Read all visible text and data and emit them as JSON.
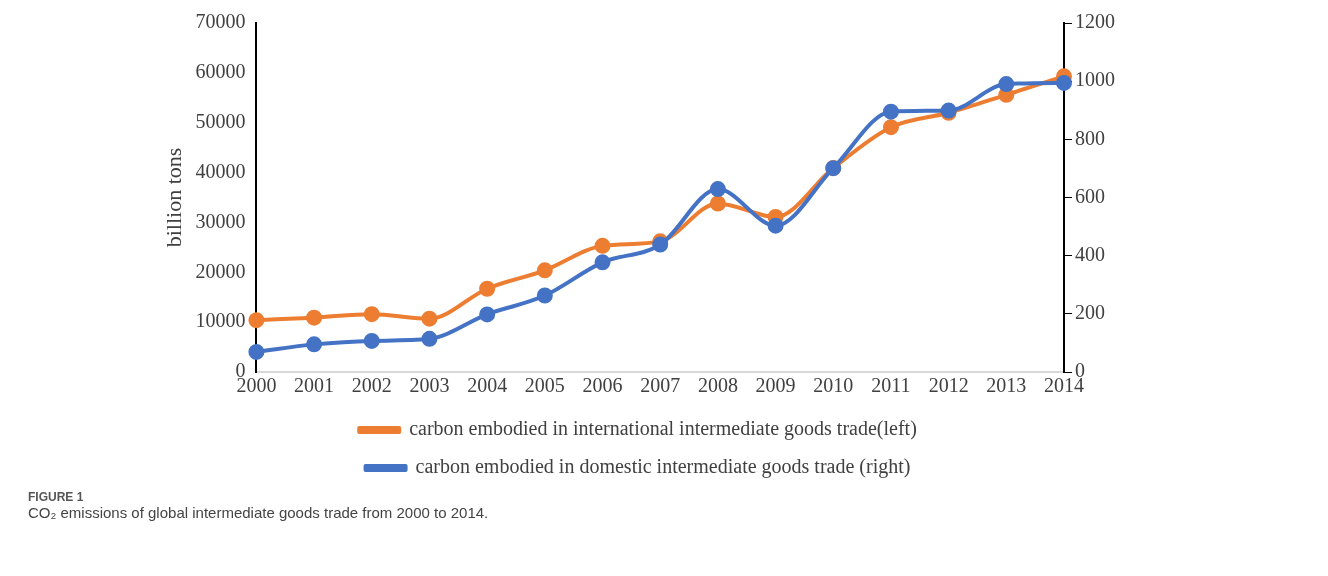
{
  "chart_data": {
    "type": "line",
    "ylabel": "billion tons",
    "categories": [
      "2000",
      "2001",
      "2002",
      "2003",
      "2004",
      "2005",
      "2006",
      "2007",
      "2008",
      "2009",
      "2010",
      "2011",
      "2012",
      "2013",
      "2014"
    ],
    "series": [
      {
        "name": "carbon embodied in international intermediate goods trade(left)",
        "color": "#ed7d31",
        "values": [
          10400,
          10900,
          11600,
          10700,
          16700,
          20400,
          25300,
          26200,
          33800,
          31100,
          40900,
          49100,
          52000,
          55600,
          59300
        ]
      },
      {
        "name": "carbon embodied in domestic intermediate goods trade (right)",
        "color": "#4472c4",
        "axis": "y2",
        "values": [
          69,
          95,
          107,
          114,
          198,
          263,
          377,
          438,
          629,
          503,
          701,
          895,
          899,
          990,
          994
        ]
      }
    ],
    "ylim": [
      0,
      70000
    ],
    "yticks": [
      0,
      10000,
      20000,
      30000,
      40000,
      50000,
      60000,
      70000
    ],
    "y2lim": [
      0,
      1200
    ],
    "y2ticks": [
      0,
      200,
      400,
      600,
      800,
      1000,
      1200
    ],
    "grid": false,
    "legend": "bottom",
    "marker": "circle",
    "line_style": "solid",
    "annotations": [
      "FIGURE 1",
      "CO₂ emissions of global intermediate goods trade from 2000 to 2014."
    ]
  }
}
